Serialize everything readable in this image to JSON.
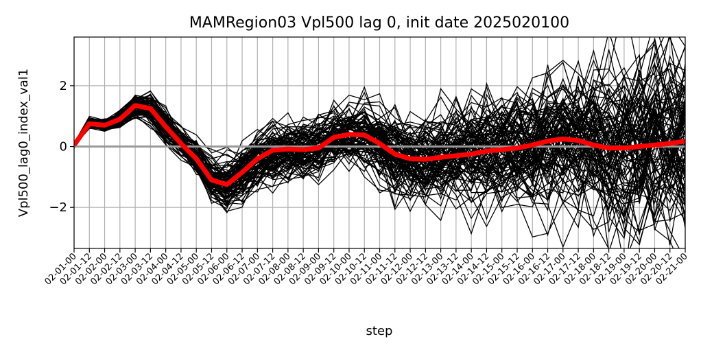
{
  "chart_data": {
    "type": "line",
    "title": "MAMRegion03 Vpl500 lag 0, init date 2025020100",
    "xlabel": "step",
    "ylabel": "Vpl500_lag0_index_val1",
    "ylim": [
      -3.35,
      3.6
    ],
    "yticks": [
      -2,
      0,
      2
    ],
    "ytick_labels": [
      "−2",
      "0",
      "2"
    ],
    "grid": true,
    "x": [
      "02-01-00",
      "02-01-12",
      "02-02-00",
      "02-02-12",
      "02-03-00",
      "02-03-12",
      "02-04-00",
      "02-04-12",
      "02-05-00",
      "02-05-12",
      "02-06-00",
      "02-06-12",
      "02-07-00",
      "02-07-12",
      "02-08-00",
      "02-08-12",
      "02-09-00",
      "02-09-12",
      "02-10-00",
      "02-10-12",
      "02-11-00",
      "02-11-12",
      "02-12-00",
      "02-12-12",
      "02-13-00",
      "02-13-12",
      "02-14-00",
      "02-14-12",
      "02-15-00",
      "02-15-12",
      "02-16-00",
      "02-16-12",
      "02-17-00",
      "02-17-12",
      "02-18-00",
      "02-18-12",
      "02-19-00",
      "02-19-12",
      "02-20-00",
      "02-20-12",
      "02-21-00"
    ],
    "ensemble_color": "#000000",
    "mean_color": "#ff0000",
    "zero_line_color": "#999999",
    "ensemble_size": 100,
    "ensemble_mean": [
      0.05,
      0.75,
      0.7,
      0.9,
      1.35,
      1.25,
      0.65,
      0.1,
      -0.4,
      -1.1,
      -1.25,
      -0.85,
      -0.4,
      -0.12,
      -0.08,
      -0.1,
      -0.05,
      0.3,
      0.4,
      0.38,
      0.1,
      -0.25,
      -0.4,
      -0.42,
      -0.35,
      -0.3,
      -0.25,
      -0.15,
      -0.1,
      -0.05,
      0.05,
      0.18,
      0.25,
      0.2,
      0.05,
      -0.05,
      -0.05,
      0.0,
      0.05,
      0.1,
      0.18
    ],
    "ensemble_spread": [
      0.05,
      0.08,
      0.1,
      0.15,
      0.22,
      0.25,
      0.25,
      0.25,
      0.3,
      0.35,
      0.4,
      0.45,
      0.48,
      0.5,
      0.5,
      0.5,
      0.5,
      0.52,
      0.55,
      0.58,
      0.62,
      0.68,
      0.72,
      0.76,
      0.8,
      0.84,
      0.88,
      0.92,
      0.96,
      1.0,
      1.05,
      1.1,
      1.15,
      1.2,
      1.25,
      1.3,
      1.35,
      1.4,
      1.45,
      1.5,
      1.55
    ]
  }
}
